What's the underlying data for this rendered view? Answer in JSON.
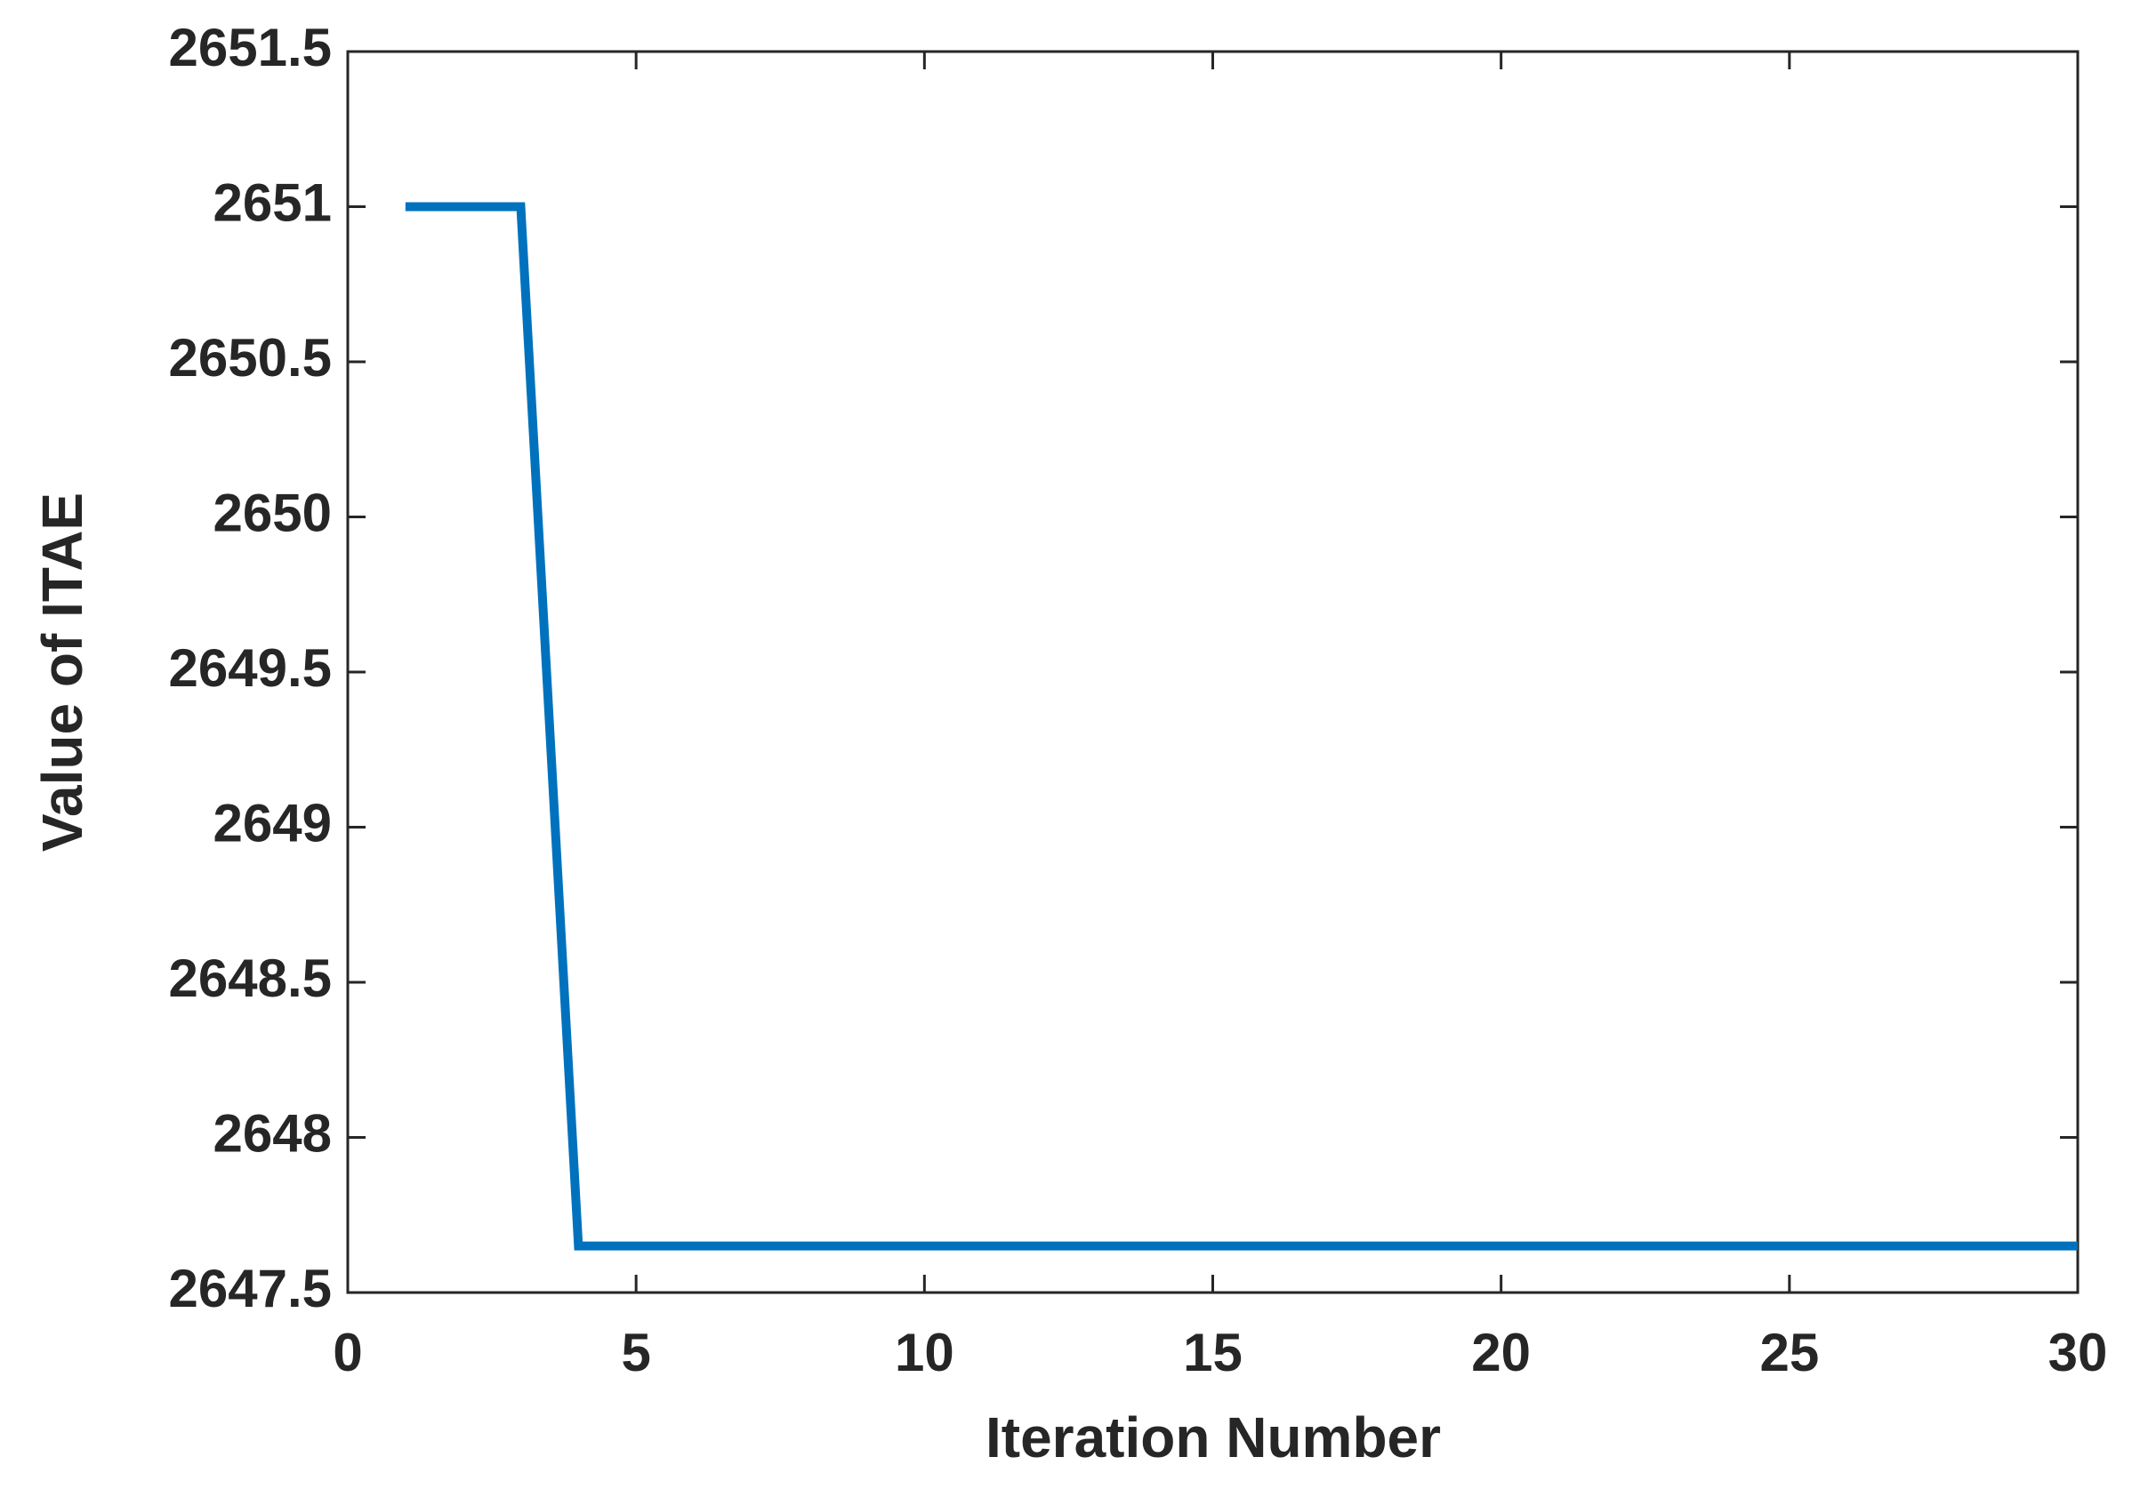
{
  "chart_data": {
    "type": "line",
    "xlabel": "Iteration Number",
    "ylabel": "Value of ITAE",
    "x": [
      1,
      2,
      3,
      4,
      5,
      6,
      7,
      8,
      9,
      10,
      11,
      12,
      13,
      14,
      15,
      16,
      17,
      18,
      19,
      20,
      21,
      22,
      23,
      24,
      25,
      26,
      27,
      28,
      29,
      30
    ],
    "values": [
      2651,
      2651,
      2651,
      2647.65,
      2647.65,
      2647.65,
      2647.65,
      2647.65,
      2647.65,
      2647.65,
      2647.65,
      2647.65,
      2647.65,
      2647.65,
      2647.65,
      2647.65,
      2647.65,
      2647.65,
      2647.65,
      2647.65,
      2647.65,
      2647.65,
      2647.65,
      2647.65,
      2647.65,
      2647.65,
      2647.65,
      2647.65,
      2647.65,
      2647.65
    ],
    "color": "#0072bd",
    "xlim": [
      0,
      30
    ],
    "xticks": [
      0,
      5,
      10,
      15,
      20,
      25,
      30
    ],
    "ylim": [
      2647.5,
      2651.5
    ],
    "yticks": [
      2647.5,
      2648,
      2648.5,
      2649,
      2649.5,
      2650,
      2650.5,
      2651,
      2651.5
    ],
    "grid": false
  }
}
